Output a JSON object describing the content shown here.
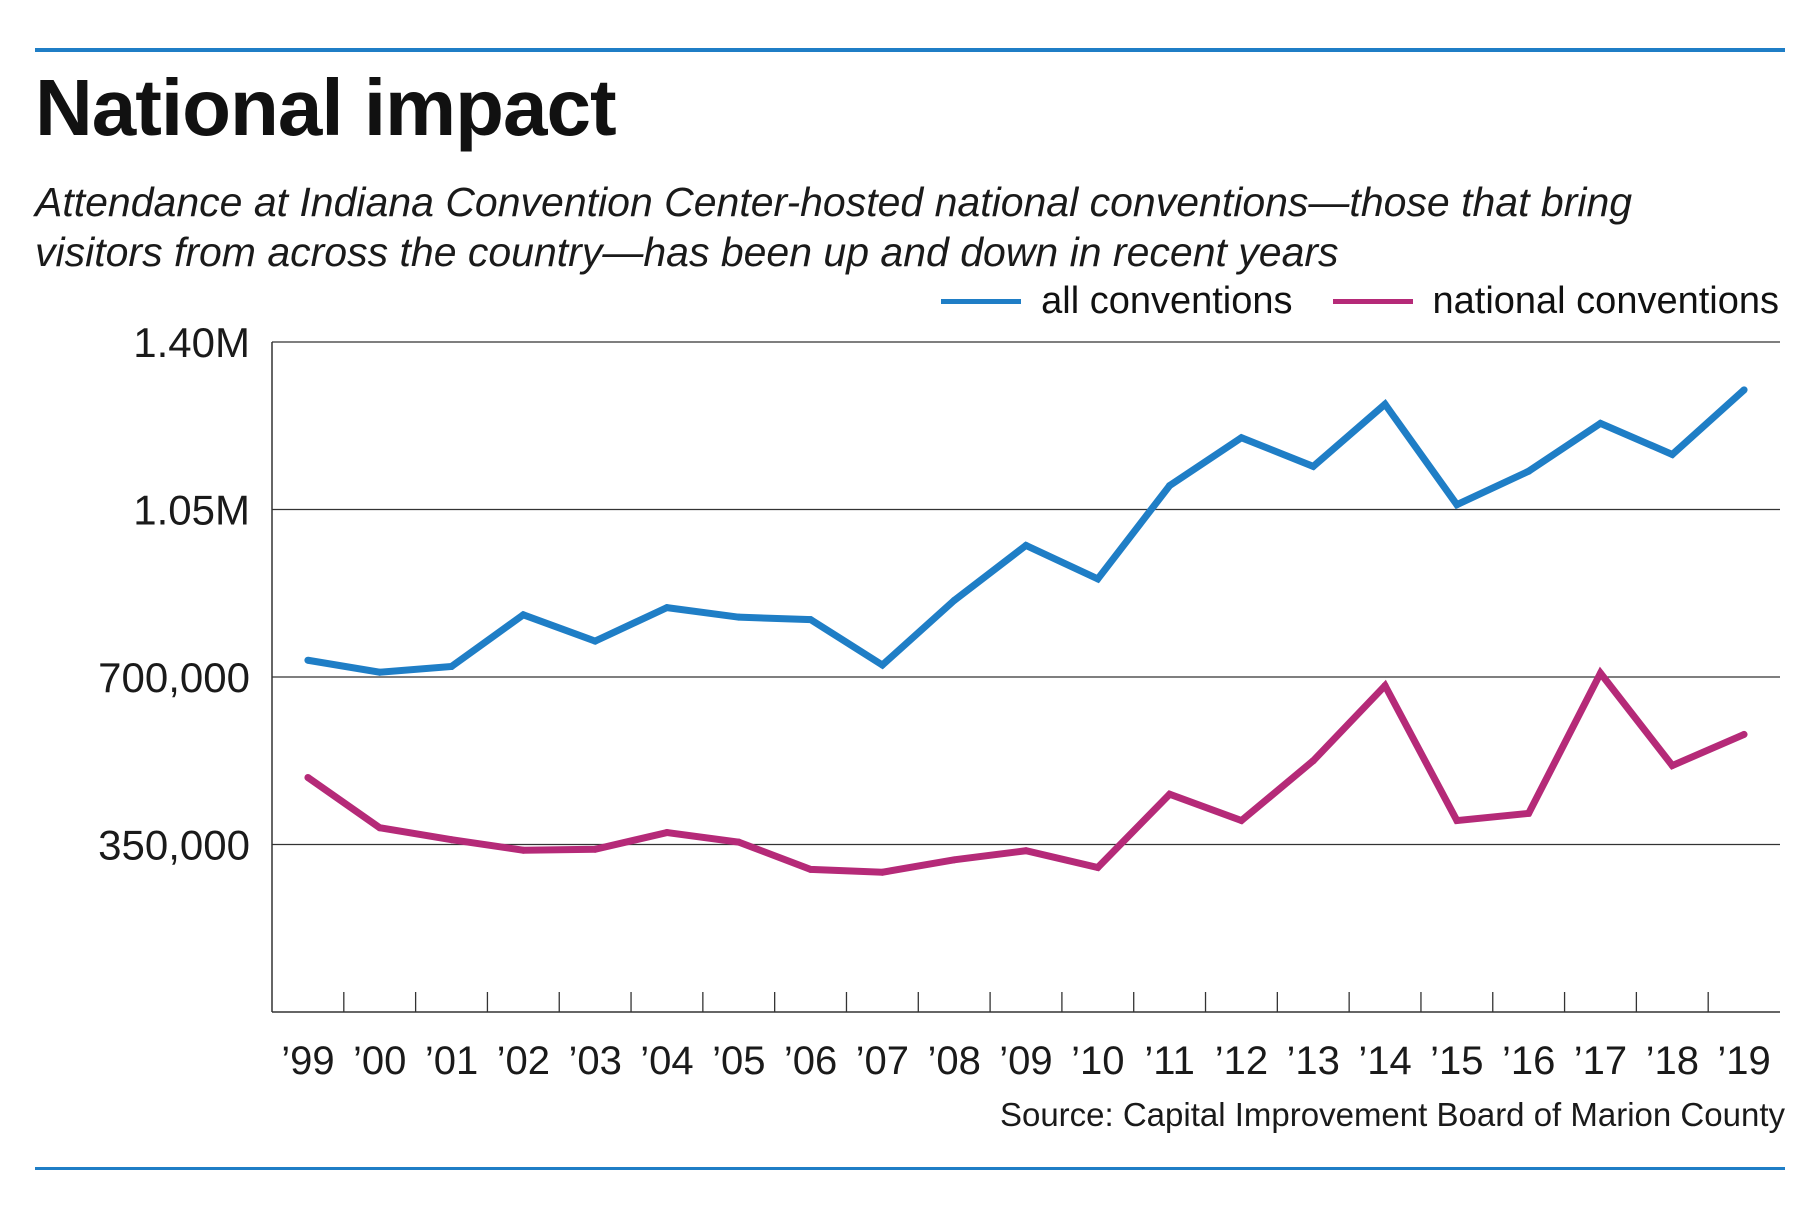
{
  "header": {
    "title": "National impact",
    "subtitle": "Attendance at Indiana Convention Center-hosted national conventions—those that bring visitors from across the country—has been up and down in recent years"
  },
  "legend": {
    "items": [
      {
        "label": "all conventions",
        "color": "#1f7ec6"
      },
      {
        "label": "national conventions",
        "color": "#b52a78"
      }
    ]
  },
  "footer": {
    "source": "Source: Capital Improvement Board of Marion County"
  },
  "chart_data": {
    "type": "line",
    "x": [
      "’99",
      "’00",
      "’01",
      "’02",
      "’03",
      "’04",
      "’05",
      "’06",
      "’07",
      "’08",
      "’09",
      "’10",
      "’11",
      "’12",
      "’13",
      "’14",
      "’15",
      "’16",
      "’17",
      "’18",
      "’19"
    ],
    "series": [
      {
        "name": "all conventions",
        "color": "#1f7ec6",
        "values": [
          735000,
          710000,
          722000,
          830000,
          775000,
          845000,
          825000,
          820000,
          725000,
          860000,
          975000,
          905000,
          1100000,
          1200000,
          1140000,
          1270000,
          1060000,
          1130000,
          1230000,
          1165000,
          1300000
        ]
      },
      {
        "name": "national conventions",
        "color": "#b52a78",
        "values": [
          490000,
          385000,
          360000,
          338000,
          340000,
          375000,
          355000,
          298000,
          292000,
          318000,
          337000,
          302000,
          455000,
          400000,
          525000,
          682000,
          400000,
          415000,
          708000,
          515000,
          580000
        ]
      }
    ],
    "yticks": [
      {
        "value": 350000,
        "label": "350,000"
      },
      {
        "value": 700000,
        "label": "700,000"
      },
      {
        "value": 1050000,
        "label": "1.05M"
      },
      {
        "value": 1400000,
        "label": "1.40M"
      }
    ],
    "ylim": [
      0,
      1400000
    ],
    "grid": true,
    "legend_position": "top-right"
  }
}
